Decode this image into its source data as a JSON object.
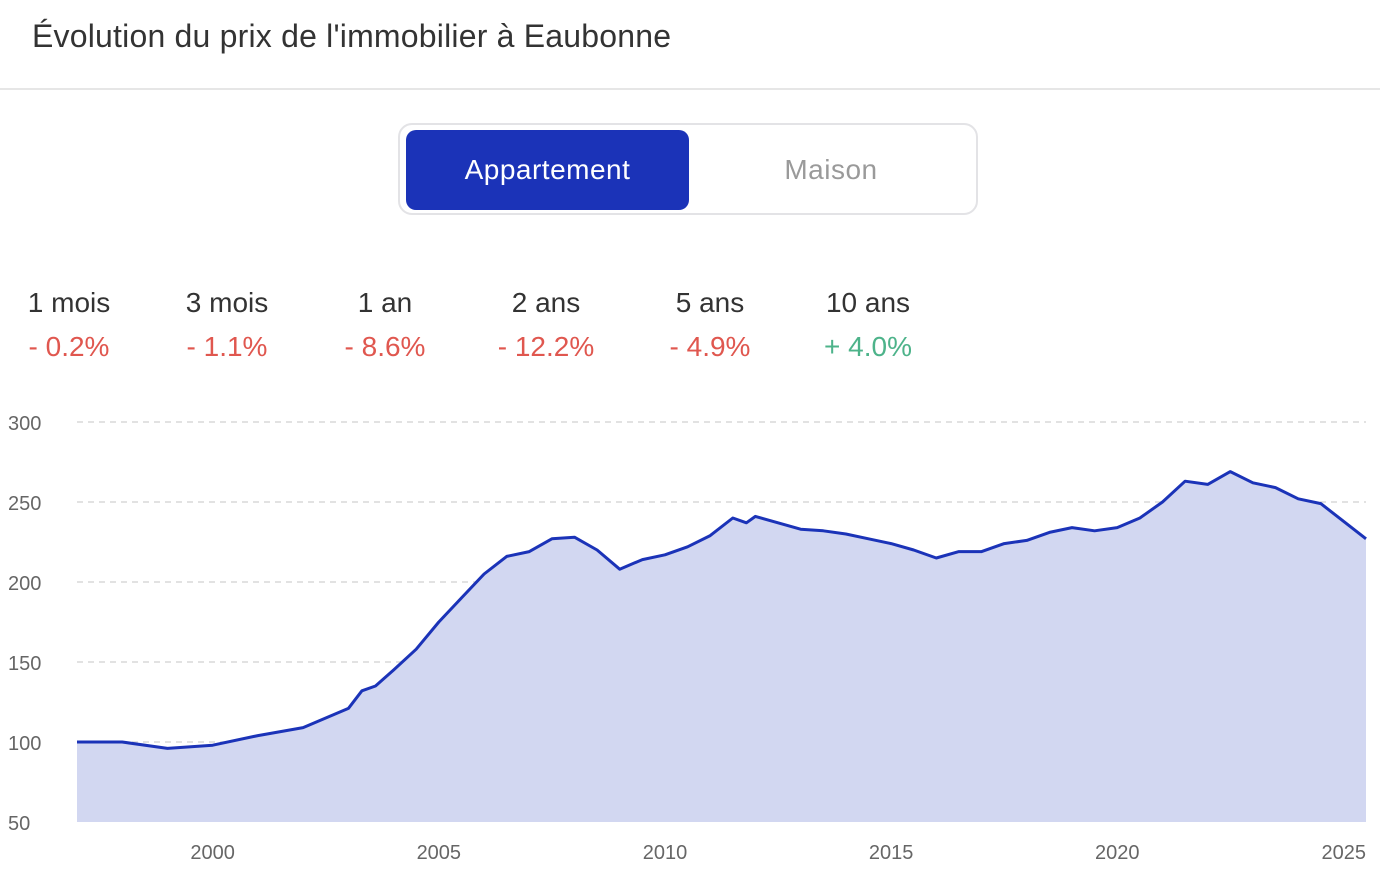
{
  "header": {
    "title": "Évolution du prix de l'immobilier à Eaubonne"
  },
  "toggle": {
    "options": [
      "Appartement",
      "Maison"
    ],
    "selected": "Appartement"
  },
  "colors": {
    "accent": "#1b33b8",
    "area": "#d2d7f1",
    "negative": "#e0574f",
    "positive": "#4db38a"
  },
  "stats": [
    {
      "label": "1 mois",
      "value": "- 0.2%",
      "trend": "negative"
    },
    {
      "label": "3 mois",
      "value": "- 1.1%",
      "trend": "negative"
    },
    {
      "label": "1 an",
      "value": "- 8.6%",
      "trend": "negative"
    },
    {
      "label": "2 ans",
      "value": "- 12.2%",
      "trend": "negative"
    },
    {
      "label": "5 ans",
      "value": "- 4.9%",
      "trend": "negative"
    },
    {
      "label": "10 ans",
      "value": "+ 4.0%",
      "trend": "positive"
    }
  ],
  "chart_data": {
    "type": "area",
    "title": "",
    "xlabel": "",
    "ylabel": "",
    "xlim": [
      1997,
      2025.5
    ],
    "ylim": [
      50,
      300
    ],
    "yticks": [
      50,
      100,
      150,
      200,
      250,
      300
    ],
    "xticks": [
      2000,
      2005,
      2010,
      2015,
      2020,
      2025
    ],
    "grid": "horizontal-dashed",
    "series": [
      {
        "x": [
          1997.0,
          1998.0,
          1999.0,
          2000.0,
          2001.0,
          2002.0,
          2003.0,
          2003.3,
          2003.6,
          2004.0,
          2004.5,
          2005.0,
          2005.5,
          2006.0,
          2006.5,
          2007.0,
          2007.5,
          2008.0,
          2008.5,
          2009.0,
          2009.5,
          2010.0,
          2010.5,
          2011.0,
          2011.5,
          2011.8,
          2012.0,
          2012.5,
          2013.0,
          2013.5,
          2014.0,
          2014.5,
          2015.0,
          2015.5,
          2016.0,
          2016.5,
          2017.0,
          2017.5,
          2018.0,
          2018.5,
          2019.0,
          2019.5,
          2020.0,
          2020.5,
          2021.0,
          2021.5,
          2022.0,
          2022.5,
          2023.0,
          2023.5,
          2024.0,
          2024.5,
          2025.0,
          2025.5
        ],
        "y": [
          100,
          100,
          96,
          98,
          104,
          109,
          121,
          132,
          135,
          145,
          158,
          175,
          190,
          205,
          216,
          219,
          227,
          228,
          220,
          208,
          214,
          217,
          222,
          229,
          240,
          237,
          241,
          237,
          233,
          232,
          230,
          227,
          224,
          220,
          215,
          219,
          219,
          224,
          226,
          231,
          234,
          232,
          234,
          240,
          250,
          263,
          261,
          269,
          262,
          259,
          252,
          249,
          238,
          227
        ]
      }
    ]
  }
}
